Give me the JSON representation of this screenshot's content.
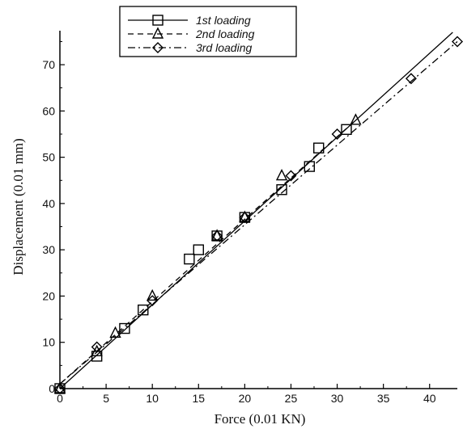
{
  "chart_data": {
    "type": "scatter",
    "xlabel": "Force (0.01 KN)",
    "ylabel": "Displacement (0.01 mm)",
    "xlim": [
      0,
      43
    ],
    "ylim": [
      0,
      77
    ],
    "xticks": [
      0,
      5,
      10,
      15,
      20,
      25,
      30,
      35,
      40
    ],
    "yticks": [
      0,
      10,
      20,
      30,
      40,
      50,
      60,
      70
    ],
    "xtick_labels": [
      "0",
      "5",
      "10",
      "15",
      "20",
      "25",
      "30",
      "35",
      "40"
    ],
    "ytick_labels": [
      "0",
      "10",
      "20",
      "30",
      "40",
      "50",
      "60",
      "70"
    ],
    "grid": false,
    "legend_position": "top-left",
    "series": [
      {
        "name": "1st loading",
        "line_style": "solid",
        "marker": "square",
        "color": "#000000",
        "points": [
          [
            0,
            0
          ],
          [
            4,
            7
          ],
          [
            7,
            13
          ],
          [
            9,
            17
          ],
          [
            14,
            28
          ],
          [
            15,
            30
          ],
          [
            17,
            33
          ],
          [
            20,
            37
          ],
          [
            24,
            43
          ],
          [
            27,
            48
          ],
          [
            28,
            52
          ],
          [
            31,
            56
          ]
        ],
        "fit": [
          [
            0,
            0
          ],
          [
            42.5,
            77
          ]
        ]
      },
      {
        "name": "2nd loading",
        "line_style": "dashed",
        "marker": "triangle",
        "color": "#000000",
        "points": [
          [
            0,
            0
          ],
          [
            4,
            8
          ],
          [
            6,
            12
          ],
          [
            10,
            20
          ],
          [
            17,
            33
          ],
          [
            20,
            37
          ],
          [
            24,
            46
          ],
          [
            32,
            58
          ]
        ],
        "fit": [
          [
            0,
            1
          ],
          [
            32,
            58
          ]
        ]
      },
      {
        "name": "3rd loading",
        "line_style": "dashdot",
        "marker": "diamond",
        "color": "#000000",
        "points": [
          [
            0,
            0
          ],
          [
            4,
            9
          ],
          [
            10,
            19
          ],
          [
            17,
            33
          ],
          [
            20,
            37
          ],
          [
            25,
            46
          ],
          [
            30,
            55
          ],
          [
            38,
            67
          ],
          [
            43,
            75
          ]
        ],
        "fit": [
          [
            0,
            1
          ],
          [
            43,
            75
          ]
        ]
      }
    ]
  }
}
